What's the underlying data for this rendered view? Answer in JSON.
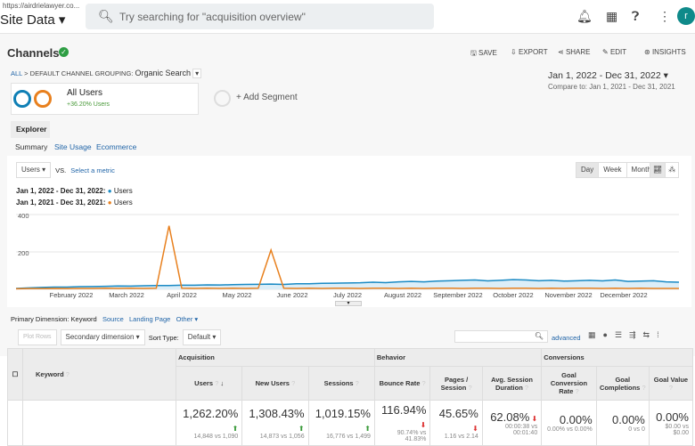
{
  "top": {
    "url": "https://airdrielawyer.co...",
    "property": "Site Data",
    "search_placeholder": "Try searching for \"acquisition overview\"",
    "avatar": "r"
  },
  "header": {
    "title": "Channels",
    "actions": [
      "SAVE",
      "EXPORT",
      "SHARE",
      "EDIT",
      "INSIGHTS"
    ]
  },
  "breadcrumb": {
    "all": "ALL",
    "sep": ">",
    "grouping": "DEFAULT CHANNEL GROUPING:",
    "value": "Organic Search"
  },
  "daterange": {
    "main": "Jan 1, 2022 - Dec 31, 2022",
    "compare": "Compare to: Jan 1, 2021 - Dec 31, 2021"
  },
  "segment": {
    "name": "All Users",
    "delta": "+36.20% Users",
    "add": "+ Add Segment"
  },
  "explorer": {
    "tab": "Explorer",
    "subtabs": [
      "Summary",
      "Site Usage",
      "Ecommerce"
    ]
  },
  "controls": {
    "metric": "Users",
    "vs": "VS.",
    "select": "Select a metric",
    "periods": [
      "Day",
      "Week",
      "Month"
    ]
  },
  "legend": [
    {
      "range": "Jan 1, 2022 - Dec 31, 2022:",
      "label": "Users",
      "color": "#1a8ac4"
    },
    {
      "range": "Jan 1, 2021 - Dec 31, 2021:",
      "label": "Users",
      "color": "#e8801e"
    }
  ],
  "chart_data": {
    "type": "line",
    "ylim": [
      0,
      400
    ],
    "yticks": [
      "400",
      "200"
    ],
    "xlabels": [
      "February 2022",
      "March 2022",
      "April 2022",
      "May 2022",
      "June 2022",
      "July 2022",
      "August 2022",
      "September 2022",
      "October 2022",
      "November 2022",
      "December 2022"
    ],
    "series": [
      {
        "name": "Users 2022",
        "color": "#1a8ac4",
        "values": [
          5,
          8,
          10,
          12,
          12,
          14,
          15,
          16,
          18,
          17,
          19,
          20,
          20,
          22,
          22,
          24,
          23,
          25,
          26,
          27,
          28,
          26,
          30,
          30,
          32,
          33,
          34,
          35,
          38,
          36,
          40,
          42,
          40,
          44,
          46,
          48,
          50,
          45,
          48,
          52,
          50,
          46,
          48,
          44,
          46,
          48,
          45,
          50,
          42,
          44,
          46,
          40,
          38
        ]
      },
      {
        "name": "Users 2021",
        "color": "#e8801e",
        "values": [
          3,
          4,
          4,
          5,
          4,
          5,
          5,
          6,
          5,
          6,
          5,
          6,
          340,
          6,
          5,
          6,
          5,
          6,
          5,
          6,
          210,
          6,
          5,
          6,
          5,
          6,
          6,
          5,
          6,
          6,
          5,
          6,
          5,
          6,
          6,
          5,
          6,
          6,
          5,
          6,
          6,
          5,
          6,
          5,
          6,
          6,
          5,
          6,
          5,
          6,
          5,
          5,
          5
        ]
      }
    ]
  },
  "table_controls": {
    "primary_label": "Primary Dimension:",
    "primary": "Keyword",
    "others": [
      "Source",
      "Landing Page",
      "Other"
    ],
    "plot": "Plot Rows",
    "secondary": "Secondary dimension",
    "sort_label": "Sort Type:",
    "sort": "Default",
    "advanced": "advanced"
  },
  "table": {
    "dim": "Keyword",
    "groups": [
      "Acquisition",
      "Behavior",
      "Conversions"
    ],
    "columns": [
      {
        "h": "Users",
        "v": "1,262.20%",
        "s": "14,848 vs 1,090",
        "t": "up"
      },
      {
        "h": "New Users",
        "v": "1,308.43%",
        "s": "14,873 vs 1,056",
        "t": "up"
      },
      {
        "h": "Sessions",
        "v": "1,019.15%",
        "s": "16,776 vs 1,499",
        "t": "up"
      },
      {
        "h": "Bounce Rate",
        "v": "116.94%",
        "s": "90.74% vs 41.83%",
        "t": "dn"
      },
      {
        "h": "Pages / Session",
        "v": "45.65%",
        "s": "1.16 vs 2.14",
        "t": "dn"
      },
      {
        "h": "Avg. Session Duration",
        "v": "62.08%",
        "s": "00:00:38 vs 00:01:40",
        "t": "dn"
      },
      {
        "h": "Goal Conversion Rate",
        "v": "0.00%",
        "s": "0.00% vs 0.00%",
        "t": ""
      },
      {
        "h": "Goal Completions",
        "v": "0.00%",
        "s": "0 vs 0",
        "t": ""
      },
      {
        "h": "Goal Value",
        "v": "0.00%",
        "s": "$0.00 vs $0.00",
        "t": ""
      }
    ]
  }
}
